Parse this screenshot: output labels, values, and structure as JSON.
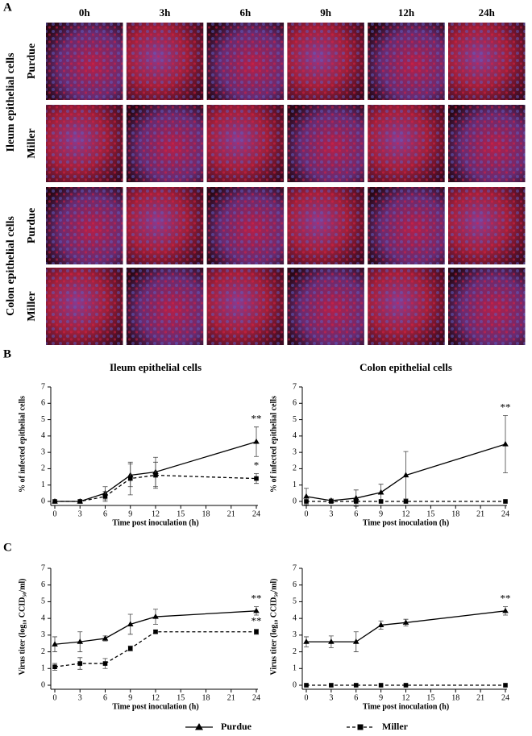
{
  "panel_labels": [
    "A",
    "B",
    "C"
  ],
  "image_grid": {
    "columns": [
      "0h",
      "3h",
      "6h",
      "9h",
      "12h",
      "24h"
    ],
    "groups": [
      {
        "label": "Ileum epithelial cells",
        "rows": [
          "Purdue",
          "Miller"
        ]
      },
      {
        "label": "Colon epithelial cells",
        "rows": [
          "Purdue",
          "Miller"
        ]
      }
    ]
  },
  "chart_data": [
    {
      "type": "line",
      "title": "Ileum epithelial cells",
      "x_label": "Time post inoculation (h)",
      "y_label": "% of infected epithelial cells",
      "x": [
        0,
        3,
        6,
        9,
        12,
        24
      ],
      "xlim": [
        0,
        24
      ],
      "xticks": [
        0,
        3,
        6,
        9,
        12,
        15,
        18,
        21,
        24
      ],
      "ylim": [
        0,
        7
      ],
      "yticks": [
        0,
        1,
        2,
        3,
        4,
        5,
        6,
        7
      ],
      "series": [
        {
          "name": "Purdue",
          "color": "#000000",
          "marker": "triangle",
          "line_style": "solid",
          "values": [
            0,
            0,
            0.5,
            1.6,
            1.8,
            3.65
          ],
          "errors": [
            0,
            0,
            0.4,
            0.7,
            0.9,
            0.9
          ],
          "annotation": "**"
        },
        {
          "name": "Miller",
          "color": "#000000",
          "marker": "square",
          "line_style": "dashed",
          "values": [
            0,
            0,
            0.3,
            1.4,
            1.6,
            1.4
          ],
          "errors": [
            0,
            0,
            0.3,
            1,
            0.8,
            0.3
          ],
          "annotation": "*"
        }
      ]
    },
    {
      "type": "line",
      "title": "Colon epithelial cells",
      "x_label": "Time post inoculation (h)",
      "y_label": "% of infected epithelial cells",
      "x": [
        0,
        3,
        6,
        9,
        12,
        24
      ],
      "xlim": [
        0,
        24
      ],
      "xticks": [
        0,
        3,
        6,
        9,
        12,
        15,
        18,
        21,
        24
      ],
      "ylim": [
        0,
        7
      ],
      "yticks": [
        0,
        1,
        2,
        3,
        4,
        5,
        6,
        7
      ],
      "series": [
        {
          "name": "Purdue",
          "color": "#000000",
          "marker": "triangle",
          "line_style": "solid",
          "values": [
            0.3,
            0.05,
            0.2,
            0.55,
            1.6,
            3.5
          ],
          "errors": [
            0.5,
            0.1,
            0.5,
            0.5,
            1.45,
            1.75
          ],
          "annotation": "**"
        },
        {
          "name": "Miller",
          "color": "#000000",
          "marker": "square",
          "line_style": "dashed",
          "values": [
            0,
            0,
            0,
            0,
            0,
            0
          ],
          "errors": [
            0,
            0,
            0,
            0,
            0,
            0
          ]
        }
      ]
    },
    {
      "type": "line",
      "x_label": "Time post inoculation (h)",
      "y_label": "Virus titer (log₁₀ CCID₅₀/ml)",
      "x": [
        0,
        3,
        6,
        9,
        12,
        24
      ],
      "xlim": [
        0,
        24
      ],
      "xticks": [
        0,
        3,
        6,
        9,
        12,
        15,
        18,
        21,
        24
      ],
      "ylim": [
        0,
        7
      ],
      "yticks": [
        0,
        1,
        2,
        3,
        4,
        5,
        6,
        7
      ],
      "series": [
        {
          "name": "Purdue",
          "color": "#000000",
          "marker": "triangle",
          "line_style": "solid",
          "values": [
            2.45,
            2.6,
            2.8,
            3.65,
            4.1,
            4.45
          ],
          "errors": [
            0.45,
            0.6,
            0.15,
            0.6,
            0.45,
            0.25
          ],
          "annotation": "**"
        },
        {
          "name": "Miller",
          "color": "#000000",
          "marker": "square",
          "line_style": "dashed",
          "values": [
            1.1,
            1.3,
            1.3,
            2.2,
            3.2,
            3.2
          ],
          "errors": [
            0.2,
            0.35,
            0.3,
            0.15,
            0.1,
            0.15
          ],
          "annotation": "**"
        }
      ]
    },
    {
      "type": "line",
      "x_label": "Time post inoculation (h)",
      "y_label": "Virus titer (log₁₀ CCID₅₀/ml)",
      "x": [
        0,
        3,
        6,
        9,
        12,
        24
      ],
      "xlim": [
        0,
        24
      ],
      "xticks": [
        0,
        3,
        6,
        9,
        12,
        15,
        18,
        21,
        24
      ],
      "ylim": [
        0,
        7
      ],
      "yticks": [
        0,
        1,
        2,
        3,
        4,
        5,
        6,
        7
      ],
      "series": [
        {
          "name": "Purdue",
          "color": "#000000",
          "marker": "triangle",
          "line_style": "solid",
          "values": [
            2.6,
            2.6,
            2.6,
            3.6,
            3.75,
            4.45
          ],
          "errors": [
            0.3,
            0.35,
            0.6,
            0.25,
            0.2,
            0.25
          ],
          "annotation": "**"
        },
        {
          "name": "Miller",
          "color": "#000000",
          "marker": "square",
          "line_style": "dashed",
          "values": [
            0,
            0,
            0,
            0,
            0,
            0
          ],
          "errors": [
            0,
            0,
            0,
            0,
            0,
            0
          ]
        }
      ]
    }
  ]
}
